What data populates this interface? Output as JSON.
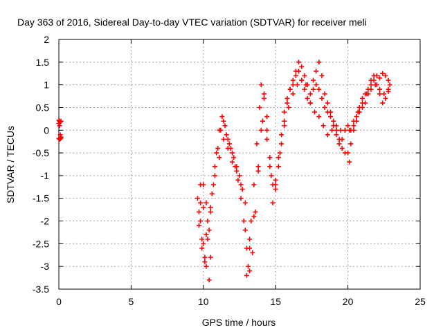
{
  "chart_data": {
    "type": "scatter",
    "title": "Day 363 of 2016, Sidereal Day-to-day VTEC variation (SDTVAR) for receiver meli",
    "xlabel": "GPS time / hours",
    "ylabel": "SDTVAR / TECUs",
    "xlim": [
      0,
      25
    ],
    "ylim": [
      -3.5,
      2
    ],
    "xticks": [
      "0",
      "5",
      "10",
      "15",
      "20",
      "25"
    ],
    "yticks": [
      "2",
      "1.5",
      "1",
      "0.5",
      "0",
      "-0.5",
      "-1",
      "-1.5",
      "-2",
      "-2.5",
      "-3",
      "-3.5"
    ],
    "grid": true,
    "marker": "plus",
    "color": "#ff0000",
    "series": [
      {
        "x": [
          0.0,
          0.05,
          0.1,
          0.15,
          0.0,
          0.05,
          0.1,
          0.15,
          0.0,
          0.05,
          0.1,
          0.15,
          9.6,
          9.8,
          10.0,
          10.2,
          10.4,
          10.5,
          10.4,
          10.2,
          10.0,
          9.8,
          9.7,
          9.9,
          10.1,
          10.3,
          10.5,
          10.7,
          10.9,
          11.1,
          11.3,
          11.5,
          11.7,
          11.9,
          12.1,
          12.3,
          12.5,
          12.7,
          12.9,
          13.0,
          13.1,
          13.2,
          13.3,
          13.5,
          13.7,
          13.9,
          14.0,
          14.2,
          14.4,
          14.6,
          14.8,
          15.0,
          15.2,
          15.4,
          15.6,
          15.8,
          16.0,
          16.2,
          16.4,
          16.6,
          16.8,
          17.0,
          17.2,
          17.4,
          17.6,
          17.8,
          18.0,
          18.2,
          18.4,
          18.6,
          18.8,
          19.0,
          19.2,
          19.4,
          19.6,
          19.8,
          20.0,
          20.1,
          20.2,
          20.4,
          20.6,
          20.8,
          21.0,
          21.2,
          21.4,
          21.6,
          21.8,
          22.0,
          22.2,
          22.4,
          22.6,
          22.8,
          22.9,
          9.7,
          9.9,
          10.1,
          10.3,
          10.6,
          10.8,
          11.0,
          11.2,
          11.4,
          11.6,
          11.8,
          12.0,
          12.2,
          12.4,
          12.6,
          12.8,
          13.0,
          13.2,
          13.4,
          13.6,
          13.8,
          14.0,
          14.2,
          14.4,
          14.6,
          14.8,
          15.0,
          15.2,
          15.4,
          15.6,
          15.8,
          16.0,
          16.2,
          16.4,
          16.6,
          16.8,
          17.0,
          17.2,
          17.4,
          17.6,
          17.8,
          18.0,
          18.2,
          18.4,
          18.6,
          18.8,
          19.0,
          19.2,
          19.4,
          19.6,
          19.8,
          20.0,
          20.2,
          20.4,
          20.6,
          20.8,
          21.0,
          21.2,
          21.4,
          21.6,
          21.8,
          22.0,
          22.2,
          22.4,
          22.6,
          22.8,
          9.8,
          10.0,
          10.2,
          10.5,
          10.8,
          11.1,
          11.4,
          11.7,
          12.0,
          12.3,
          12.6,
          12.9,
          13.2,
          13.5,
          13.8,
          14.1,
          14.4,
          14.7,
          15.0,
          15.3,
          15.6,
          15.9,
          16.2,
          16.5,
          16.8,
          17.1,
          17.4,
          17.7,
          18.0,
          18.3,
          18.6,
          18.9,
          19.2,
          19.5,
          19.8,
          20.1,
          20.4,
          20.7,
          21.0,
          21.3,
          21.6,
          21.9,
          22.2,
          22.5,
          22.8
        ],
        "y": [
          0.22,
          0.2,
          0.18,
          0.2,
          -0.18,
          -0.2,
          -0.19,
          -0.17,
          0.15,
          0.1,
          -0.1,
          -0.15,
          -1.5,
          -2.0,
          -2.5,
          -3.0,
          -3.3,
          -2.8,
          -2.2,
          -1.6,
          -1.2,
          -1.6,
          -2.1,
          -2.6,
          -2.9,
          -2.4,
          -1.8,
          -1.2,
          -0.5,
          0.0,
          0.3,
          0.1,
          -0.2,
          -0.4,
          -0.6,
          -0.8,
          -1.0,
          -1.3,
          -2.2,
          -3.2,
          -3.0,
          -2.6,
          -2.0,
          -1.2,
          -0.3,
          0.5,
          1.0,
          0.8,
          0.0,
          -0.8,
          -1.6,
          -1.3,
          -0.8,
          -0.3,
          0.2,
          0.6,
          0.9,
          1.1,
          1.3,
          1.5,
          1.4,
          1.2,
          1.0,
          0.8,
          1.1,
          1.3,
          1.5,
          1.2,
          0.8,
          0.6,
          0.4,
          0.2,
          0.0,
          -0.2,
          -0.4,
          -0.5,
          -0.5,
          -0.7,
          -0.3,
          0.0,
          0.2,
          0.4,
          0.5,
          0.6,
          0.8,
          1.0,
          1.1,
          1.2,
          1.15,
          1.25,
          1.2,
          1.1,
          1.0,
          -1.8,
          -2.4,
          -2.8,
          -2.0,
          -1.4,
          -0.8,
          -0.4,
          0.0,
          0.2,
          -0.1,
          -0.3,
          -0.5,
          -0.8,
          -1.1,
          -1.5,
          -2.0,
          -2.6,
          -3.1,
          -2.7,
          -1.8,
          -0.9,
          0.0,
          0.7,
          0.3,
          -0.6,
          -1.2,
          -1.1,
          -0.6,
          -0.1,
          0.4,
          0.7,
          0.9,
          1.0,
          1.2,
          1.3,
          1.1,
          0.9,
          0.7,
          0.6,
          0.9,
          1.0,
          0.9,
          0.7,
          0.5,
          0.4,
          0.3,
          0.1,
          -0.1,
          -0.3,
          -0.2,
          0.0,
          0.1,
          0.0,
          0.1,
          0.3,
          0.5,
          0.7,
          0.8,
          0.9,
          1.1,
          1.2,
          1.0,
          0.8,
          0.6,
          0.7,
          0.9,
          -1.2,
          -1.7,
          -2.3,
          -1.7,
          -1.0,
          -0.6,
          -0.2,
          -0.4,
          -0.7,
          -0.9,
          -1.2,
          -1.6,
          -2.4,
          -1.9,
          -0.8,
          0.2,
          -0.2,
          -1.0,
          -1.2,
          -0.5,
          0.1,
          0.5,
          0.8,
          1.0,
          1.1,
          1.0,
          0.6,
          0.4,
          0.3,
          0.1,
          -0.1,
          0.0,
          0.1,
          0.0,
          0.0,
          0.0,
          0.2,
          0.4,
          0.6,
          0.8,
          0.9,
          1.0,
          0.9,
          0.8,
          0.85
        ]
      }
    ]
  }
}
